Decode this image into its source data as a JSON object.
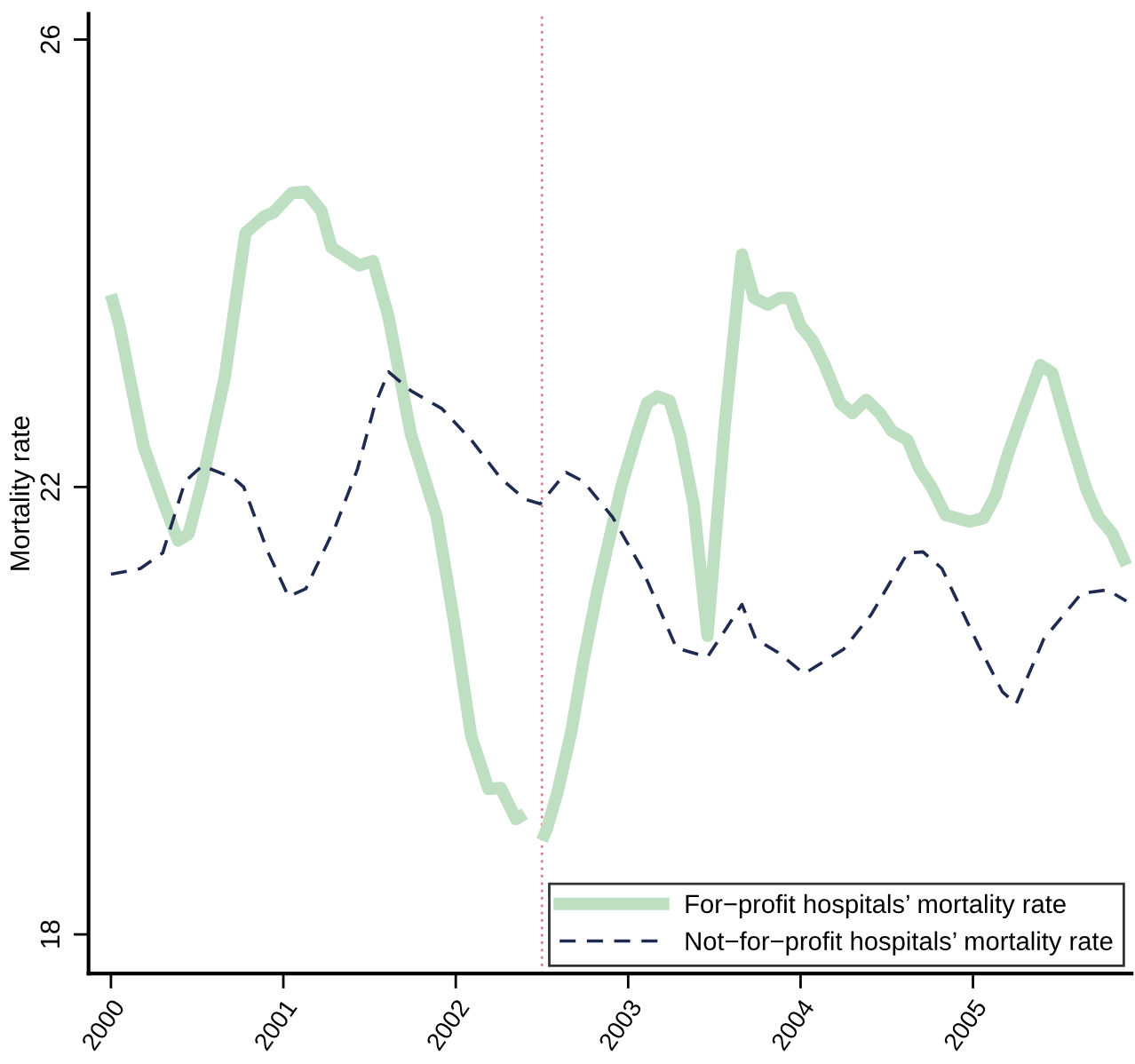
{
  "chart_data": {
    "type": "line",
    "ylabel": "Mortality rate",
    "xlim": [
      1999.87,
      2005.92
    ],
    "ylim": [
      17.65,
      26.23
    ],
    "xticks": [
      2000,
      2001,
      2002,
      2003,
      2004,
      2005
    ],
    "yticks": [
      18,
      22,
      26
    ],
    "grid": false,
    "legend": "bottom right",
    "marker": "none",
    "ref_lines": [
      {
        "axis": "x",
        "value": 2002.5,
        "label": null,
        "color": "#e07a8a",
        "line_style": "dotted"
      }
    ],
    "series": [
      {
        "name": "For−profit hospitals’ mortality rate",
        "color": "#bfdfc3",
        "line_style": "solid",
        "x": [
          2000.0,
          2000.05,
          2000.12,
          2000.19,
          2000.31,
          2000.39,
          2000.45,
          2000.53,
          2000.66,
          2000.78,
          2000.89,
          2000.94,
          2001.05,
          2001.13,
          2001.22,
          2001.28,
          2001.44,
          2001.52,
          2001.61,
          2001.74,
          2001.89,
          2001.99,
          2002.09,
          2002.19,
          2002.26,
          2002.35,
          2002.4,
          2002.45,
          2002.5,
          2002.53,
          2002.59,
          2002.67,
          2002.74,
          2002.82,
          2002.89,
          2002.96,
          2003.05,
          2003.11,
          2003.17,
          2003.24,
          2003.3,
          2003.38,
          2003.46,
          2003.56,
          2003.66,
          2003.73,
          2003.81,
          2003.88,
          2003.94,
          2004.0,
          2004.07,
          2004.14,
          2004.23,
          2004.3,
          2004.38,
          2004.46,
          2004.53,
          2004.62,
          2004.69,
          2004.76,
          2004.84,
          2004.98,
          2005.06,
          2005.13,
          2005.2,
          2005.28,
          2005.39,
          2005.46,
          2005.56,
          2005.66,
          2005.73,
          2005.81,
          2005.89
        ],
        "values": [
          23.72,
          23.44,
          22.89,
          22.36,
          21.84,
          21.52,
          21.58,
          22.05,
          22.98,
          24.27,
          24.42,
          24.45,
          24.63,
          24.64,
          24.47,
          24.14,
          23.98,
          24.02,
          23.52,
          22.47,
          21.73,
          20.8,
          19.77,
          19.3,
          19.31,
          19.03,
          19.08,
          null,
          18.84,
          18.95,
          19.27,
          19.81,
          20.44,
          21.06,
          21.53,
          22.0,
          22.47,
          22.75,
          22.81,
          22.77,
          22.47,
          21.84,
          20.67,
          22.55,
          24.08,
          23.69,
          23.63,
          23.69,
          23.69,
          23.44,
          23.31,
          23.09,
          22.75,
          22.66,
          22.78,
          22.66,
          22.5,
          22.42,
          22.16,
          22.0,
          21.75,
          21.69,
          21.72,
          21.92,
          22.28,
          22.63,
          23.09,
          23.02,
          22.47,
          21.97,
          21.73,
          21.58,
          21.3
        ]
      },
      {
        "name": "Not−for−profit hospitals’ mortality rate",
        "color": "#1f2a50",
        "line_style": "dashed",
        "x": [
          2000.0,
          2000.17,
          2000.3,
          2000.43,
          2000.53,
          2000.71,
          2000.77,
          2000.91,
          2001.03,
          2001.13,
          2001.3,
          2001.43,
          2001.53,
          2001.61,
          2001.74,
          2001.92,
          2002.09,
          2002.26,
          2002.4,
          2002.49,
          2002.64,
          2002.74,
          2002.91,
          2003.08,
          2003.28,
          2003.46,
          2003.66,
          2003.74,
          2003.87,
          2004.02,
          2004.25,
          2004.41,
          2004.62,
          2004.71,
          2004.82,
          2005.03,
          2005.17,
          2005.25,
          2005.41,
          2005.63,
          2005.78,
          2005.89
        ],
        "values": [
          21.22,
          21.27,
          21.41,
          22.05,
          22.19,
          22.08,
          22.0,
          21.42,
          21.02,
          21.09,
          21.64,
          22.16,
          22.73,
          23.03,
          22.86,
          22.7,
          22.42,
          22.08,
          21.89,
          21.85,
          22.13,
          22.05,
          21.73,
          21.27,
          20.56,
          20.48,
          20.95,
          20.64,
          20.52,
          20.33,
          20.55,
          20.86,
          21.41,
          21.42,
          21.27,
          20.59,
          20.17,
          20.06,
          20.64,
          21.05,
          21.08,
          20.98
        ]
      }
    ]
  }
}
